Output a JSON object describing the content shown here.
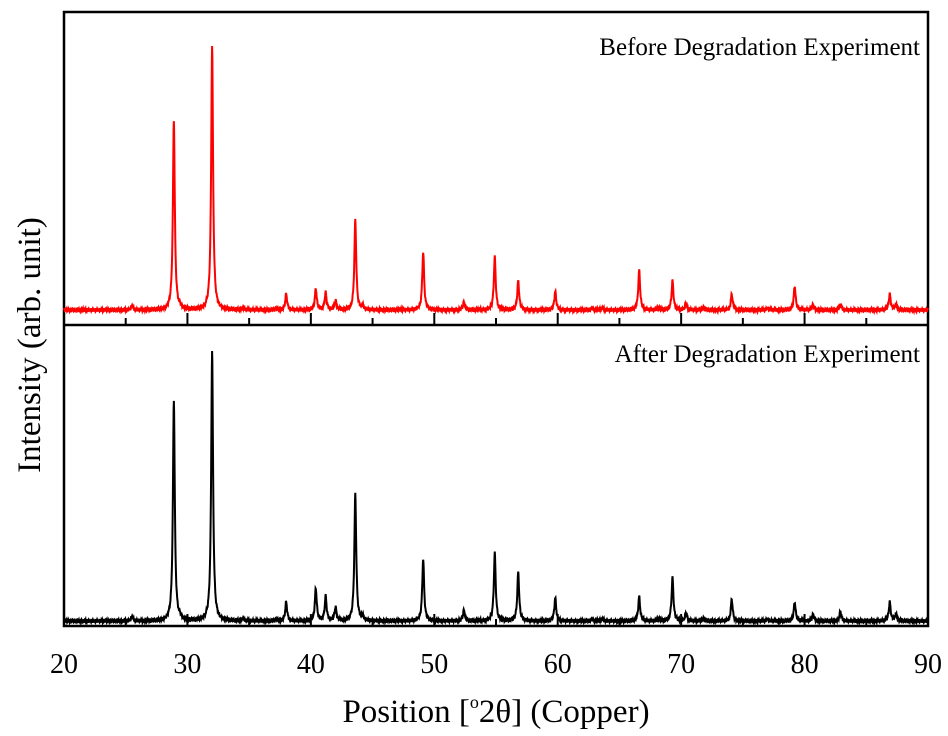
{
  "chart_data": {
    "type": "line",
    "xlabel_prefix": "Position [",
    "xlabel_sup": "o",
    "xlabel_suffix": "2θ] (Copper)",
    "ylabel": "Intensity (arb. unit)",
    "xlim": [
      20,
      90
    ],
    "x_ticks": [
      "20",
      "30",
      "40",
      "50",
      "60",
      "70",
      "80",
      "90"
    ],
    "grid": false,
    "series": [
      {
        "name": "Before Degradation Experiment",
        "color": "#ff0000",
        "baseline": 0.02,
        "peaks": [
          [
            25.5,
            0.015
          ],
          [
            28.9,
            0.72
          ],
          [
            29.4,
            0.01
          ],
          [
            32.0,
            1.0
          ],
          [
            34.5,
            0.008
          ],
          [
            37.2,
            0.006
          ],
          [
            38.0,
            0.06
          ],
          [
            40.4,
            0.08
          ],
          [
            41.2,
            0.065
          ],
          [
            42.0,
            0.035
          ],
          [
            43.6,
            0.34
          ],
          [
            44.2,
            0.015
          ],
          [
            49.1,
            0.22
          ],
          [
            52.4,
            0.03
          ],
          [
            54.9,
            0.2
          ],
          [
            56.8,
            0.11
          ],
          [
            59.8,
            0.07
          ],
          [
            62.8,
            0.006
          ],
          [
            63.6,
            0.008
          ],
          [
            66.6,
            0.15
          ],
          [
            68.2,
            0.008
          ],
          [
            69.3,
            0.11
          ],
          [
            70.4,
            0.025
          ],
          [
            71.8,
            0.01
          ],
          [
            74.1,
            0.06
          ],
          [
            77.0,
            0.008
          ],
          [
            79.2,
            0.09
          ],
          [
            80.7,
            0.02
          ],
          [
            82.9,
            0.02
          ],
          [
            86.9,
            0.06
          ],
          [
            87.4,
            0.02
          ]
        ]
      },
      {
        "name": "After Degradation Experiment",
        "color": "#000000",
        "baseline": 0.02,
        "peaks": [
          [
            25.5,
            0.015
          ],
          [
            28.9,
            0.82
          ],
          [
            29.4,
            0.01
          ],
          [
            32.0,
            1.0
          ],
          [
            34.5,
            0.008
          ],
          [
            37.2,
            0.006
          ],
          [
            38.0,
            0.07
          ],
          [
            40.4,
            0.12
          ],
          [
            41.2,
            0.09
          ],
          [
            42.0,
            0.05
          ],
          [
            43.6,
            0.47
          ],
          [
            44.2,
            0.015
          ],
          [
            49.1,
            0.23
          ],
          [
            52.4,
            0.04
          ],
          [
            54.9,
            0.25
          ],
          [
            56.8,
            0.18
          ],
          [
            59.8,
            0.085
          ],
          [
            62.8,
            0.006
          ],
          [
            63.6,
            0.008
          ],
          [
            66.6,
            0.09
          ],
          [
            68.2,
            0.008
          ],
          [
            69.3,
            0.16
          ],
          [
            70.4,
            0.03
          ],
          [
            71.8,
            0.01
          ],
          [
            74.1,
            0.08
          ],
          [
            77.0,
            0.008
          ],
          [
            79.2,
            0.07
          ],
          [
            80.7,
            0.025
          ],
          [
            82.9,
            0.035
          ],
          [
            86.9,
            0.07
          ],
          [
            87.4,
            0.025
          ]
        ]
      }
    ]
  }
}
